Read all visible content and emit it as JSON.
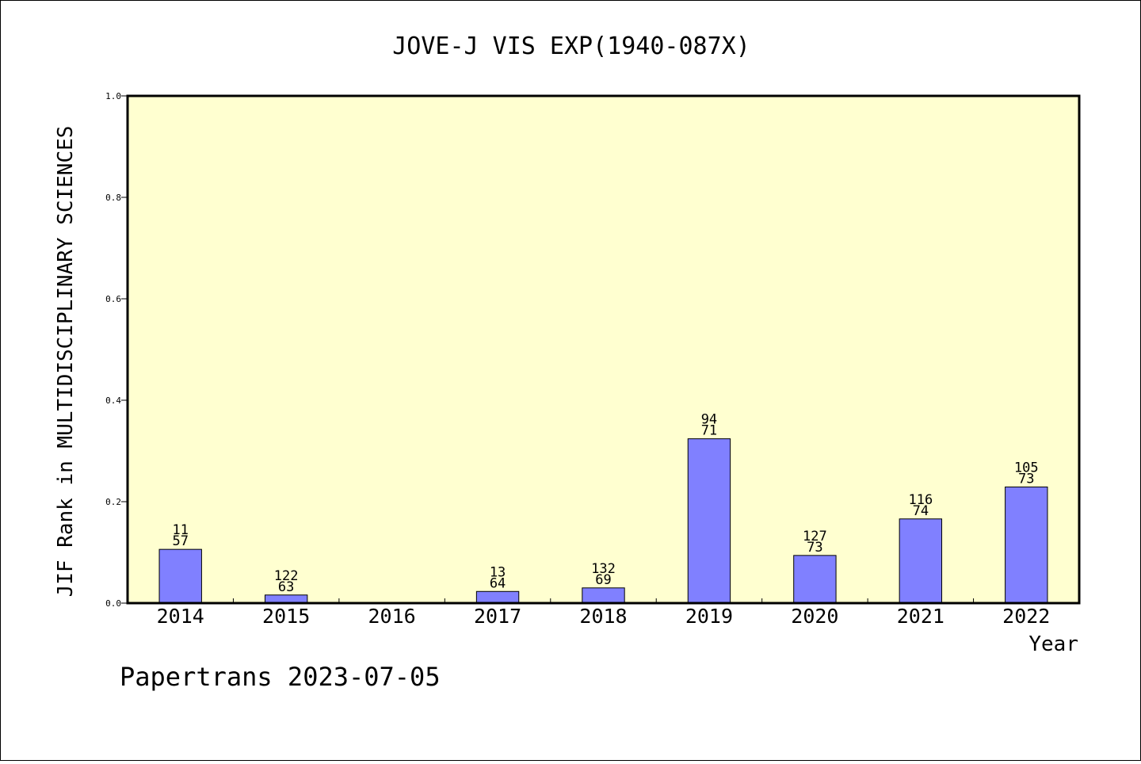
{
  "chart_data": {
    "type": "bar",
    "title": "JOVE-J VIS EXP(1940-087X)",
    "xlabel": "Year",
    "ylabel": "JIF Rank in MULTIDISCIPLINARY SCIENCES",
    "ylim": [
      0,
      1.0
    ],
    "yticks": [
      "0.0",
      "0.2",
      "0.4",
      "0.6",
      "0.8",
      "1.0"
    ],
    "grid": false,
    "legend": "none",
    "colors": {
      "plot_background": "#ffffd0",
      "bar_fill": "#8080ff",
      "bar_stroke": "#000000"
    },
    "categories": [
      "2014",
      "2015",
      "2016",
      "2017",
      "2018",
      "2019",
      "2020",
      "2021",
      "2022"
    ],
    "values": [
      0.106,
      0.016,
      0,
      0.023,
      0.03,
      0.324,
      0.094,
      0.166,
      0.229
    ],
    "bar_labels": [
      {
        "rank": "11",
        "total": "57"
      },
      {
        "rank": "122",
        "total": "63"
      },
      null,
      {
        "rank": "13",
        "total": "64"
      },
      {
        "rank": "132",
        "total": "69"
      },
      {
        "rank": "94",
        "total": "71"
      },
      {
        "rank": "127",
        "total": "73"
      },
      {
        "rank": "116",
        "total": "74"
      },
      {
        "rank": "105",
        "total": "73"
      }
    ]
  },
  "footer": {
    "credit": "Papertrans 2023-07-05"
  }
}
